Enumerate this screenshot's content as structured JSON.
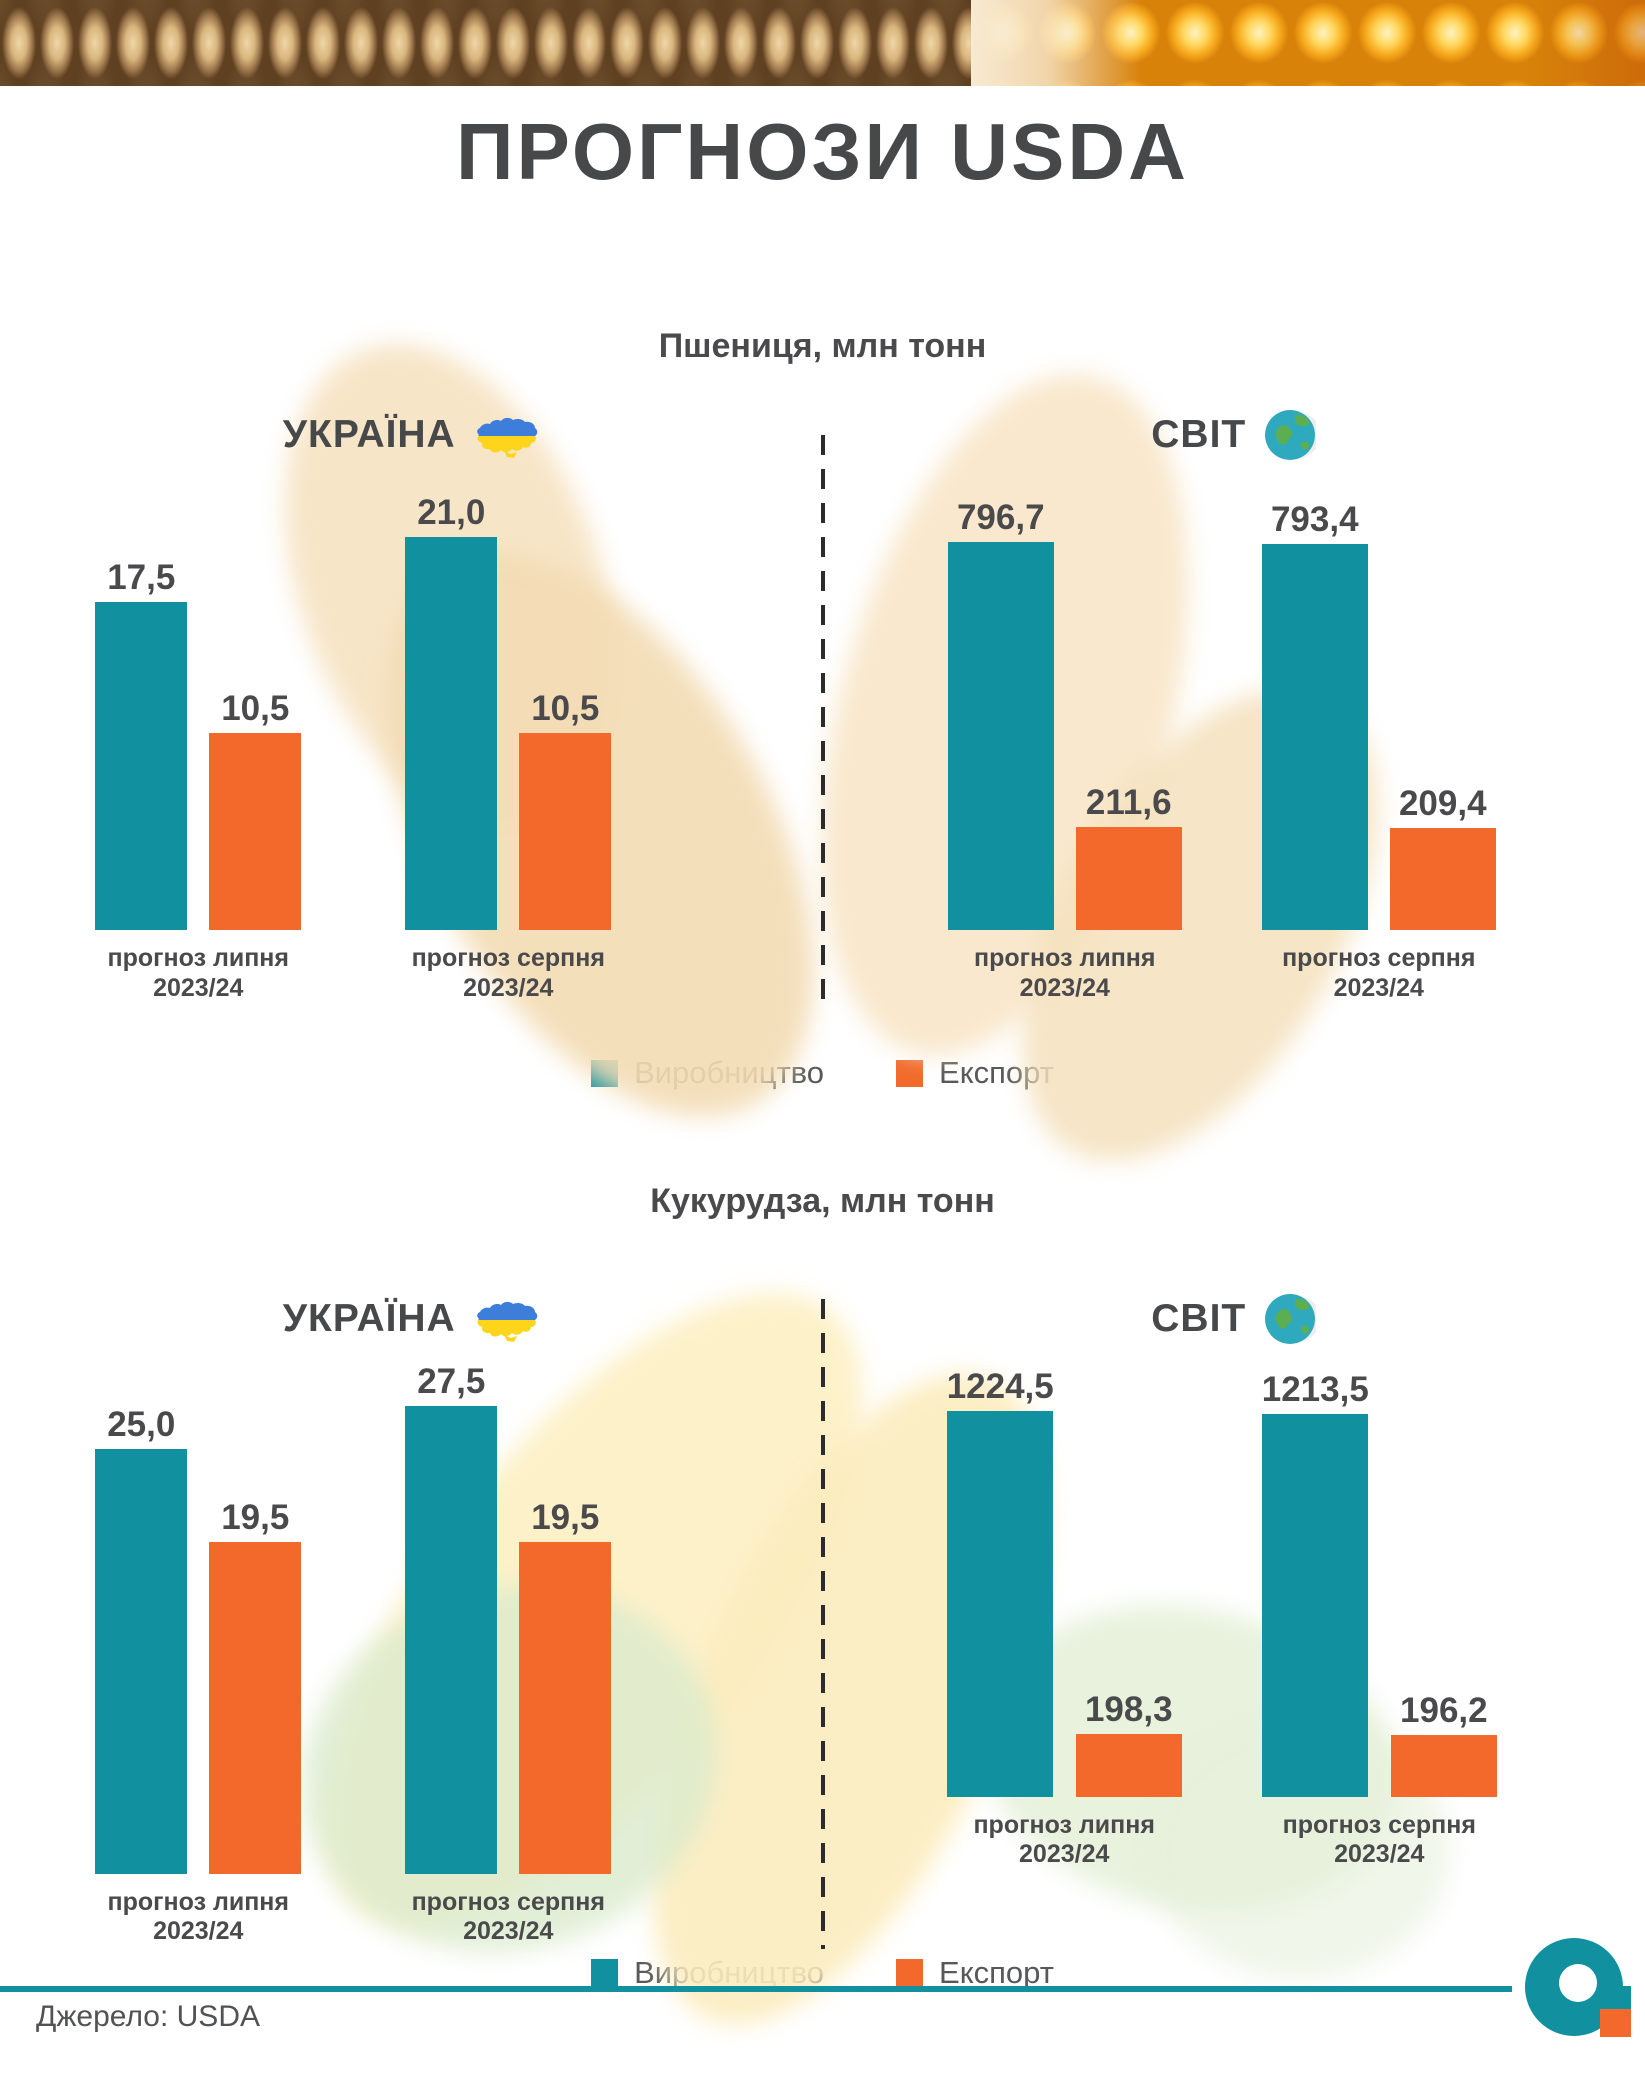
{
  "title": "ПРОГНОЗИ USDA",
  "banner": {
    "left": "wheat-grains-photo",
    "right": "corn-kernels-photo"
  },
  "legend": {
    "production": "Виробництво",
    "export": "Експорт"
  },
  "colors": {
    "production": "#1191A0",
    "export": "#F2692B",
    "accent_line": "#1191A0",
    "text": "#4A4A4C"
  },
  "footer": {
    "source": "Джерело: USDA",
    "logo": "agro-logo"
  },
  "chart_data": [
    {
      "type": "bar",
      "title": "Пшениця, млн тонн",
      "legend": [
        "Виробництво",
        "Експорт"
      ],
      "legend_position": "bottom",
      "panels": [
        {
          "name": "УКРАЇНА",
          "icon": "ukraine-map-flag-icon",
          "categories": [
            "прогноз липня 2023/24",
            "прогноз серпня 2023/24"
          ],
          "series": [
            {
              "name": "Виробництво",
              "values": [
                17.5,
                21.0
              ]
            },
            {
              "name": "Експорт",
              "values": [
                10.5,
                10.5
              ]
            }
          ],
          "groups": [
            {
              "label_line1": "прогноз липня",
              "label_line2": "2023/24",
              "production": "17,5",
              "export": "10,5"
            },
            {
              "label_line1": "прогноз серпня",
              "label_line2": "2023/24",
              "production": "21,0",
              "export": "10,5"
            }
          ]
        },
        {
          "name": "СВІТ",
          "icon": "globe-icon",
          "categories": [
            "прогноз липня 2023/24",
            "прогноз серпня 2023/24"
          ],
          "series": [
            {
              "name": "Виробництво",
              "values": [
                796.7,
                793.4
              ]
            },
            {
              "name": "Експорт",
              "values": [
                211.6,
                209.4
              ]
            }
          ],
          "groups": [
            {
              "label_line1": "прогноз липня",
              "label_line2": "2023/24",
              "production": "796,7",
              "export": "211,6"
            },
            {
              "label_line1": "прогноз серпня",
              "label_line2": "2023/24",
              "production": "793,4",
              "export": "209,4"
            }
          ]
        }
      ]
    },
    {
      "type": "bar",
      "title": "Кукурудза, млн тонн",
      "legend": [
        "Виробництво",
        "Експорт"
      ],
      "legend_position": "bottom",
      "panels": [
        {
          "name": "УКРАЇНА",
          "icon": "ukraine-map-flag-icon",
          "categories": [
            "прогноз липня 2023/24",
            "прогноз серпня 2023/24"
          ],
          "series": [
            {
              "name": "Виробництво",
              "values": [
                25.0,
                27.5
              ]
            },
            {
              "name": "Експорт",
              "values": [
                19.5,
                19.5
              ]
            }
          ],
          "groups": [
            {
              "label_line1": "прогноз липня",
              "label_line2": "2023/24",
              "production": "25,0",
              "export": "19,5"
            },
            {
              "label_line1": "прогноз серпня",
              "label_line2": "2023/24",
              "production": "27,5",
              "export": "19,5"
            }
          ]
        },
        {
          "name": "СВІТ",
          "icon": "globe-icon",
          "categories": [
            "прогноз липня 2023/24",
            "прогноз серпня 2023/24"
          ],
          "series": [
            {
              "name": "Виробництво",
              "values": [
                1224.5,
                1213.5
              ]
            },
            {
              "name": "Експорт",
              "values": [
                198.3,
                196.2
              ]
            }
          ],
          "groups": [
            {
              "label_line1": "прогноз липня",
              "label_line2": "2023/24",
              "production": "1224,5",
              "export": "198,3"
            },
            {
              "label_line1": "прогноз серпня",
              "label_line2": "2023/24",
              "production": "1213,5",
              "export": "196,2"
            }
          ]
        }
      ]
    }
  ]
}
